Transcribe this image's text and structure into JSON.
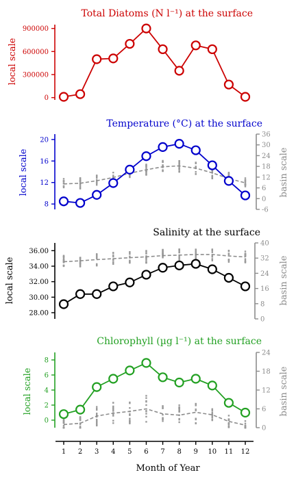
{
  "colors": {
    "diatoms": "#cc0000",
    "temperature": "#0000cc",
    "salinity": "#000000",
    "chlorophyll": "#22a022",
    "basin": "#8c8c8c"
  },
  "x_axis": {
    "label": "Month of Year",
    "ticks": [
      "1",
      "2",
      "3",
      "4",
      "5",
      "6",
      "7",
      "8",
      "9",
      "10",
      "11",
      "12"
    ]
  },
  "chart_data": [
    {
      "type": "line",
      "title": "Total Diatoms (N l⁻¹) at the surface",
      "ylabel": "local scale",
      "ylim": [
        -30000,
        950000
      ],
      "yticks": [
        0,
        300000,
        600000,
        900000
      ],
      "ytick_labels": [
        "0",
        "300000",
        "600000",
        "900000"
      ],
      "x": [
        1,
        2,
        3,
        4,
        5,
        6,
        7,
        8,
        9,
        10,
        11,
        12
      ],
      "series": [
        {
          "values": [
            10000,
            45000,
            500000,
            510000,
            700000,
            900000,
            630000,
            350000,
            680000,
            630000,
            170000,
            10000
          ]
        }
      ]
    },
    {
      "type": "line",
      "title": "Temperature (°C) at the surface",
      "ylabel": "local scale",
      "ylim": [
        7,
        21
      ],
      "yticks": [
        8,
        12,
        16,
        20
      ],
      "ytick_labels": [
        "8",
        "12",
        "16",
        "20"
      ],
      "ylabel_right": "basin scale",
      "ylim_right": [
        -6,
        36
      ],
      "yticks_right": [
        -6,
        0,
        6,
        12,
        18,
        24,
        30,
        36
      ],
      "ytick_labels_right": [
        "-6",
        "0",
        "6",
        "12",
        "18",
        "24",
        "30",
        "36"
      ],
      "x": [
        1,
        2,
        3,
        4,
        5,
        6,
        7,
        8,
        9,
        10,
        11,
        12
      ],
      "series": [
        {
          "axis": "local",
          "values": [
            8.5,
            8.2,
            9.7,
            11.9,
            14.4,
            16.9,
            18.6,
            19.2,
            18.0,
            15.2,
            12.3,
            9.6
          ]
        },
        {
          "axis": "basin",
          "style": "dashed",
          "values": [
            8.2,
            8.6,
            10.0,
            11.8,
            14.2,
            16.1,
            17.8,
            18.3,
            17.0,
            14.4,
            11.2,
            8.8
          ]
        }
      ]
    },
    {
      "type": "line",
      "title": "Salinity at the surface",
      "ylabel": "local scale",
      "ylim": [
        27.2,
        37.0
      ],
      "yticks": [
        28,
        30,
        32,
        34,
        36
      ],
      "ytick_labels": [
        "28.00",
        "30.00",
        "32.00",
        "34.00",
        "36.00"
      ],
      "ylabel_right": "basin scale",
      "ylim_right": [
        0,
        40
      ],
      "yticks_right": [
        0,
        8,
        16,
        24,
        32,
        40
      ],
      "ytick_labels_right": [
        "0",
        "8",
        "16",
        "24",
        "32",
        "40"
      ],
      "x": [
        1,
        2,
        3,
        4,
        5,
        6,
        7,
        8,
        9,
        10,
        11,
        12
      ],
      "series": [
        {
          "axis": "local",
          "values": [
            29.1,
            30.4,
            30.4,
            31.4,
            31.9,
            32.9,
            33.8,
            34.1,
            34.3,
            33.6,
            32.5,
            31.4
          ]
        },
        {
          "axis": "basin",
          "style": "dashed",
          "values": [
            30.1,
            30.6,
            31.2,
            31.7,
            32.2,
            32.7,
            33.3,
            33.6,
            33.9,
            33.9,
            33.1,
            32.6
          ]
        }
      ]
    },
    {
      "type": "line",
      "title": "Chlorophyll (µg l⁻¹) at the surface",
      "ylabel": "local scale",
      "ylim": [
        -1.0,
        9.0
      ],
      "yticks": [
        0,
        2,
        4,
        6,
        8
      ],
      "ytick_labels": [
        "0",
        "2",
        "4",
        "6",
        "8"
      ],
      "ylabel_right": "basin scale",
      "ylim_right": [
        0,
        24
      ],
      "yticks_right": [
        0,
        6,
        12,
        18,
        24
      ],
      "ytick_labels_right": [
        "0",
        "6",
        "12",
        "18",
        "24"
      ],
      "x": [
        1,
        2,
        3,
        4,
        5,
        6,
        7,
        8,
        9,
        10,
        11,
        12
      ],
      "series": [
        {
          "axis": "local",
          "values": [
            0.8,
            1.4,
            4.4,
            5.5,
            6.6,
            7.6,
            5.7,
            5.0,
            5.5,
            4.6,
            2.3,
            1.0
          ]
        },
        {
          "axis": "basin",
          "style": "dashed",
          "values": [
            1.0,
            1.4,
            3.7,
            4.6,
            5.2,
            6.0,
            4.4,
            4.0,
            4.9,
            4.1,
            2.0,
            0.8
          ]
        }
      ]
    }
  ]
}
